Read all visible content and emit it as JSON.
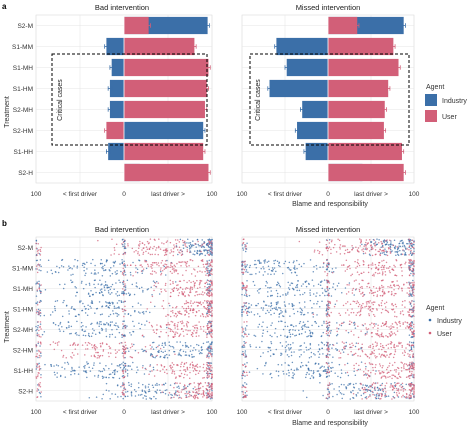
{
  "colors": {
    "industry": "#3b6fa8",
    "user": "#d25f78",
    "grid": "#e6e6e6",
    "error": "#555555"
  },
  "panel_a": {
    "letter": "a",
    "ylabel": "Treatment",
    "critical_label": "Critical cases"
  },
  "panel_b": {
    "letter": "b",
    "ylabel": "Treatment"
  },
  "shared": {
    "xlabel": "Blame and responsibility",
    "x_tick_labels": [
      "100",
      "< first driver",
      "0",
      "last driver >",
      "100"
    ],
    "legend_title": "Agent",
    "legend_items": [
      "Industry",
      "User"
    ]
  },
  "chart_data": [
    {
      "type": "bar",
      "panel": "a",
      "facets": [
        "Bad intervention",
        "Missed intervention"
      ],
      "categories": [
        "S2-M",
        "S1-MM",
        "S1-MH",
        "S1-HM",
        "S2-MH",
        "S2-HM",
        "S1-HH",
        "S2-H"
      ],
      "xlim": [
        -100,
        100
      ],
      "grid": true,
      "legend": "right",
      "series": [
        {
          "name": "Industry",
          "facet": "Bad intervention",
          "values": [
            95,
            -20,
            -14,
            -16,
            -16,
            90,
            -18,
            18
          ],
          "err": [
            2,
            2,
            2,
            2,
            2,
            2,
            2,
            2
          ]
        },
        {
          "name": "User",
          "facet": "Bad intervention",
          "values": [
            28,
            80,
            96,
            94,
            92,
            -20,
            90,
            96
          ],
          "err": [
            2,
            2,
            2,
            2,
            2,
            2,
            2,
            2
          ]
        },
        {
          "name": "Industry",
          "facet": "Missed intervention",
          "values": [
            88,
            -60,
            -48,
            -68,
            -30,
            -36,
            -26,
            40
          ],
          "err": [
            2,
            2,
            2,
            2,
            2,
            2,
            2,
            2
          ]
        },
        {
          "name": "User",
          "facet": "Missed intervention",
          "values": [
            34,
            76,
            82,
            70,
            66,
            65,
            86,
            88
          ],
          "err": [
            2,
            2,
            2,
            2,
            2,
            2,
            2,
            2
          ]
        }
      ]
    },
    {
      "type": "scatter",
      "panel": "b",
      "facets": [
        "Bad intervention",
        "Missed intervention"
      ],
      "categories": [
        "S2-M",
        "S1-MM",
        "S1-MH",
        "S1-HM",
        "S2-MH",
        "S2-HM",
        "S1-HH",
        "S2-H"
      ],
      "xlim": [
        -100,
        100
      ],
      "grid": true,
      "legend": "right",
      "series": [
        {
          "name": "Industry",
          "facet": "Bad intervention",
          "centers": [
            85,
            -30,
            -25,
            -30,
            -30,
            60,
            -30,
            40
          ],
          "spreads": [
            18,
            55,
            55,
            55,
            55,
            45,
            55,
            50
          ]
        },
        {
          "name": "User",
          "facet": "Bad intervention",
          "centers": [
            40,
            60,
            75,
            75,
            70,
            -30,
            70,
            80
          ],
          "spreads": [
            45,
            45,
            30,
            30,
            35,
            55,
            35,
            25
          ]
        },
        {
          "name": "Industry",
          "facet": "Missed intervention",
          "centers": [
            75,
            -50,
            -40,
            -55,
            -30,
            -30,
            -25,
            45
          ],
          "spreads": [
            30,
            50,
            55,
            45,
            55,
            55,
            55,
            45
          ]
        },
        {
          "name": "User",
          "facet": "Missed intervention",
          "centers": [
            40,
            55,
            65,
            55,
            60,
            55,
            70,
            75
          ],
          "spreads": [
            45,
            45,
            35,
            45,
            40,
            40,
            35,
            30
          ]
        }
      ]
    }
  ]
}
